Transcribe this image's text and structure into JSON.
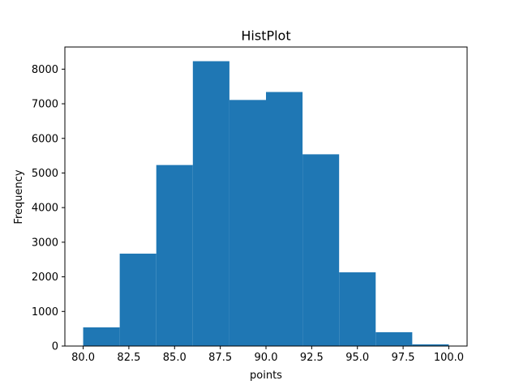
{
  "chart_data": {
    "type": "bar",
    "title": "HistPlot",
    "xlabel": "points",
    "ylabel": "Frequency",
    "bins": [
      {
        "x0": 80.0,
        "x1": 82.0,
        "value": 540
      },
      {
        "x0": 82.0,
        "x1": 84.0,
        "value": 2670
      },
      {
        "x0": 84.0,
        "x1": 86.0,
        "value": 5230
      },
      {
        "x0": 86.0,
        "x1": 88.0,
        "value": 8230
      },
      {
        "x0": 88.0,
        "x1": 90.0,
        "value": 7110
      },
      {
        "x0": 90.0,
        "x1": 92.0,
        "value": 7340
      },
      {
        "x0": 92.0,
        "x1": 94.0,
        "value": 5540
      },
      {
        "x0": 94.0,
        "x1": 96.0,
        "value": 2130
      },
      {
        "x0": 96.0,
        "x1": 98.0,
        "value": 400
      },
      {
        "x0": 98.0,
        "x1": 100.0,
        "value": 50
      }
    ],
    "xlim": [
      79.0,
      101.0
    ],
    "ylim": [
      0,
      8640
    ],
    "x_ticks": [
      "80.0",
      "82.5",
      "85.0",
      "87.5",
      "90.0",
      "92.5",
      "95.0",
      "97.5",
      "100.0"
    ],
    "y_ticks": [
      "0",
      "1000",
      "2000",
      "3000",
      "4000",
      "5000",
      "6000",
      "7000",
      "8000"
    ],
    "bar_color": "#1f77b4",
    "grid": false,
    "legend": "none"
  }
}
